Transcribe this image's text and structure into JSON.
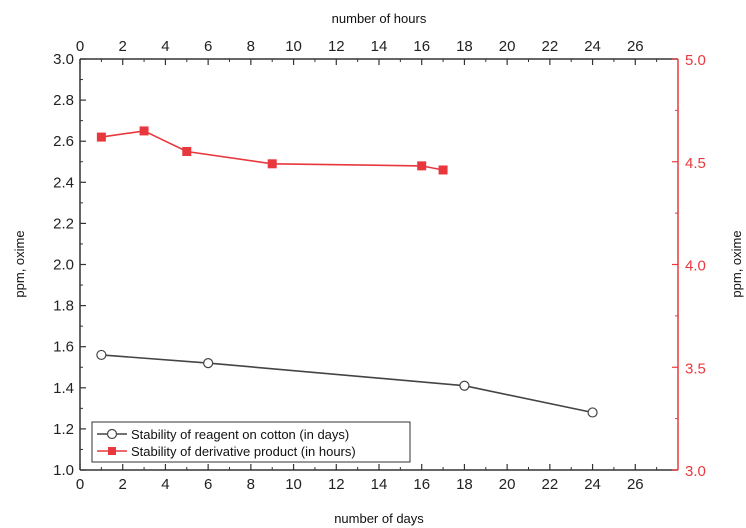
{
  "chart_data": {
    "type": "line",
    "x_bottom_label": "number of days",
    "x_top_label": "number of hours",
    "y_left_label": "ppm, oxime",
    "y_right_label": "ppm, oxime",
    "x_range": [
      0,
      28
    ],
    "x_ticks": [
      0,
      2,
      4,
      6,
      8,
      10,
      12,
      14,
      16,
      18,
      20,
      22,
      24,
      26
    ],
    "y_left_range": [
      1.0,
      3.0
    ],
    "y_left_ticks": [
      1.0,
      1.2,
      1.4,
      1.6,
      1.8,
      2.0,
      2.2,
      2.4,
      2.6,
      2.8,
      3.0
    ],
    "y_right_range": [
      3.0,
      5.0
    ],
    "y_right_ticks": [
      3.0,
      3.5,
      4.0,
      4.5,
      5.0
    ],
    "grid": false,
    "legend_position": "bottom-left",
    "series": [
      {
        "name": "Stability of reagent on cotton (in days)",
        "x_axis": "bottom",
        "y_axis": "left",
        "marker": "open-circle",
        "color": "#444444",
        "x": [
          1,
          6,
          18,
          24
        ],
        "y": [
          1.56,
          1.52,
          1.41,
          1.28
        ]
      },
      {
        "name": "Stability of derivative product (in hours)",
        "x_axis": "top",
        "y_axis": "right",
        "marker": "filled-square",
        "color": "#e8383d",
        "x": [
          1,
          3,
          5,
          9,
          16,
          17
        ],
        "y": [
          4.62,
          4.65,
          4.55,
          4.49,
          4.48,
          4.46
        ]
      }
    ]
  }
}
